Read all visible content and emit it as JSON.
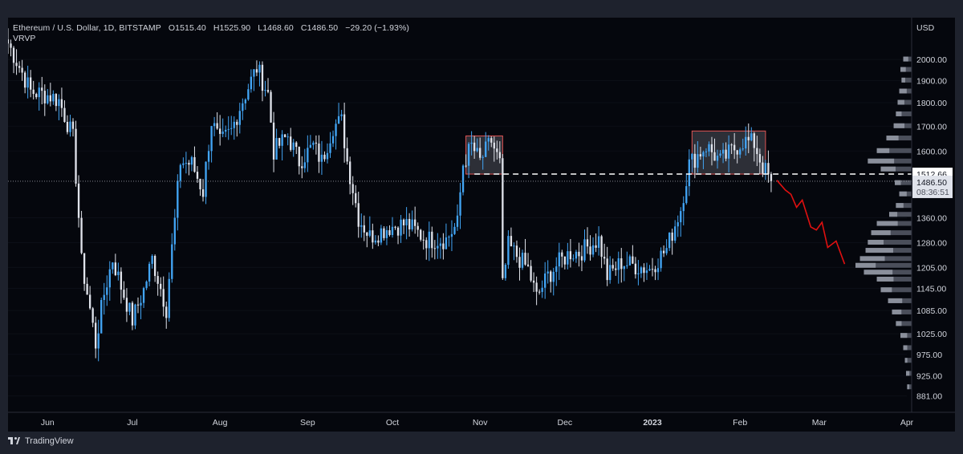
{
  "header": {
    "symbol": "Ethereum / U.S. Dollar, 1D, BITSTAMP",
    "open": "O1515.40",
    "high": "H1525.90",
    "low": "L1468.60",
    "close": "C1486.50",
    "change": "−29.20 (−1.93%)",
    "indicator": "VRVP"
  },
  "footer": {
    "brand": "TradingView"
  },
  "colors": {
    "background": "#05070d",
    "candle_up": "#42a5f5",
    "candle_down": "#e0e3eb",
    "box_border": "#e05454",
    "projection": "#e01010",
    "dashed_level": "#ffffff"
  },
  "price_axis": {
    "currency": "USD",
    "ticks": [
      "2000.00",
      "1900.00",
      "1800.00",
      "1700.00",
      "1600.00",
      "1360.00",
      "1280.00",
      "1205.00",
      "1145.00",
      "1085.00",
      "1025.00",
      "975.00",
      "925.00",
      "881.00"
    ]
  },
  "time_axis": {
    "labels": [
      "Jun",
      "Jul",
      "Aug",
      "Sep",
      "Oct",
      "Nov",
      "Dec",
      "2023",
      "Feb",
      "Mar",
      "Apr"
    ]
  },
  "price_tags": {
    "level": "1512.66",
    "last": "1486.50",
    "countdown": "08:36:51"
  },
  "chart_data": {
    "type": "candlestick",
    "symbol": "ETHUSD",
    "timeframe": "1D",
    "y_scale": "log",
    "ylim": [
      860,
      2180
    ],
    "x_range": [
      "2022-05-18",
      "2023-04-01"
    ],
    "waypoints": [
      [
        "2022-05-18",
        2080
      ],
      [
        "2022-05-26",
        1850
      ],
      [
        "2022-06-02",
        1830
      ],
      [
        "2022-06-05",
        1810
      ],
      [
        "2022-06-10",
        1650
      ],
      [
        "2022-06-13",
        1220
      ],
      [
        "2022-06-18",
        1000
      ],
      [
        "2022-06-21",
        1130
      ],
      [
        "2022-06-24",
        1230
      ],
      [
        "2022-06-27",
        1150
      ],
      [
        "2022-07-01",
        1060
      ],
      [
        "2022-07-05",
        1140
      ],
      [
        "2022-07-08",
        1230
      ],
      [
        "2022-07-13",
        1090
      ],
      [
        "2022-07-16",
        1350
      ],
      [
        "2022-07-18",
        1560
      ],
      [
        "2022-07-22",
        1550
      ],
      [
        "2022-07-26",
        1450
      ],
      [
        "2022-07-29",
        1720
      ],
      [
        "2022-08-01",
        1630
      ],
      [
        "2022-08-05",
        1680
      ],
      [
        "2022-08-08",
        1780
      ],
      [
        "2022-08-14",
        1960
      ],
      [
        "2022-08-18",
        1840
      ],
      [
        "2022-08-20",
        1600
      ],
      [
        "2022-08-25",
        1660
      ],
      [
        "2022-08-29",
        1560
      ],
      [
        "2022-09-03",
        1620
      ],
      [
        "2022-09-06",
        1560
      ],
      [
        "2022-09-10",
        1700
      ],
      [
        "2022-09-13",
        1720
      ],
      [
        "2022-09-15",
        1560
      ],
      [
        "2022-09-19",
        1360
      ],
      [
        "2022-09-23",
        1300
      ],
      [
        "2022-09-30",
        1330
      ],
      [
        "2022-10-06",
        1340
      ],
      [
        "2022-10-13",
        1290
      ],
      [
        "2022-10-20",
        1290
      ],
      [
        "2022-10-24",
        1340
      ],
      [
        "2022-10-26",
        1550
      ],
      [
        "2022-10-29",
        1620
      ],
      [
        "2022-11-01",
        1560
      ],
      [
        "2022-11-05",
        1640
      ],
      [
        "2022-11-08",
        1550
      ],
      [
        "2022-11-09",
        1150
      ],
      [
        "2022-11-11",
        1270
      ],
      [
        "2022-11-14",
        1240
      ],
      [
        "2022-11-18",
        1200
      ],
      [
        "2022-11-21",
        1120
      ],
      [
        "2022-11-25",
        1180
      ],
      [
        "2022-11-29",
        1220
      ],
      [
        "2022-12-03",
        1250
      ],
      [
        "2022-12-06",
        1250
      ],
      [
        "2022-12-13",
        1290
      ],
      [
        "2022-12-16",
        1180
      ],
      [
        "2022-12-21",
        1220
      ],
      [
        "2022-12-26",
        1210
      ],
      [
        "2022-12-31",
        1200
      ],
      [
        "2023-01-06",
        1260
      ],
      [
        "2023-01-11",
        1390
      ],
      [
        "2023-01-14",
        1550
      ],
      [
        "2023-01-20",
        1620
      ],
      [
        "2023-01-25",
        1560
      ],
      [
        "2023-01-29",
        1600
      ],
      [
        "2023-02-02",
        1640
      ],
      [
        "2023-02-06",
        1630
      ],
      [
        "2023-02-09",
        1540
      ],
      [
        "2023-02-12",
        1486.5
      ]
    ],
    "annotations": {
      "resistance_level": 1512.66,
      "last_price": 1486.5,
      "boxes": [
        {
          "from": "2022-10-27",
          "to": "2022-11-09",
          "low": 1512.66,
          "high": 1660
        },
        {
          "from": "2023-01-15",
          "to": "2023-02-10",
          "low": 1512.66,
          "high": 1680
        }
      ],
      "projection_path": [
        [
          "2023-02-14",
          1490
        ],
        [
          "2023-02-17",
          1455
        ],
        [
          "2023-02-19",
          1440
        ],
        [
          "2023-02-21",
          1395
        ],
        [
          "2023-02-23",
          1420
        ],
        [
          "2023-02-26",
          1330
        ],
        [
          "2023-02-28",
          1320
        ],
        [
          "2023-03-02",
          1345
        ],
        [
          "2023-03-04",
          1265
        ],
        [
          "2023-03-07",
          1285
        ],
        [
          "2023-03-10",
          1215
        ]
      ]
    },
    "volume_profile": [
      {
        "price": 2000,
        "width": 0.15
      },
      {
        "price": 1950,
        "width": 0.2
      },
      {
        "price": 1900,
        "width": 0.18
      },
      {
        "price": 1850,
        "width": 0.22
      },
      {
        "price": 1800,
        "width": 0.25
      },
      {
        "price": 1750,
        "width": 0.28
      },
      {
        "price": 1700,
        "width": 0.32
      },
      {
        "price": 1650,
        "width": 0.45
      },
      {
        "price": 1600,
        "width": 0.62
      },
      {
        "price": 1560,
        "width": 0.78
      },
      {
        "price": 1530,
        "width": 0.55
      },
      {
        "price": 1480,
        "width": 0.3
      },
      {
        "price": 1440,
        "width": 0.22
      },
      {
        "price": 1400,
        "width": 0.28
      },
      {
        "price": 1370,
        "width": 0.4
      },
      {
        "price": 1340,
        "width": 0.62
      },
      {
        "price": 1310,
        "width": 0.72
      },
      {
        "price": 1280,
        "width": 0.78
      },
      {
        "price": 1255,
        "width": 0.82
      },
      {
        "price": 1230,
        "width": 0.92
      },
      {
        "price": 1210,
        "width": 1.0
      },
      {
        "price": 1190,
        "width": 0.85
      },
      {
        "price": 1170,
        "width": 0.62
      },
      {
        "price": 1140,
        "width": 0.55
      },
      {
        "price": 1110,
        "width": 0.42
      },
      {
        "price": 1080,
        "width": 0.35
      },
      {
        "price": 1050,
        "width": 0.28
      },
      {
        "price": 1020,
        "width": 0.2
      },
      {
        "price": 990,
        "width": 0.15
      },
      {
        "price": 960,
        "width": 0.12
      },
      {
        "price": 930,
        "width": 0.1
      },
      {
        "price": 900,
        "width": 0.08
      }
    ]
  }
}
